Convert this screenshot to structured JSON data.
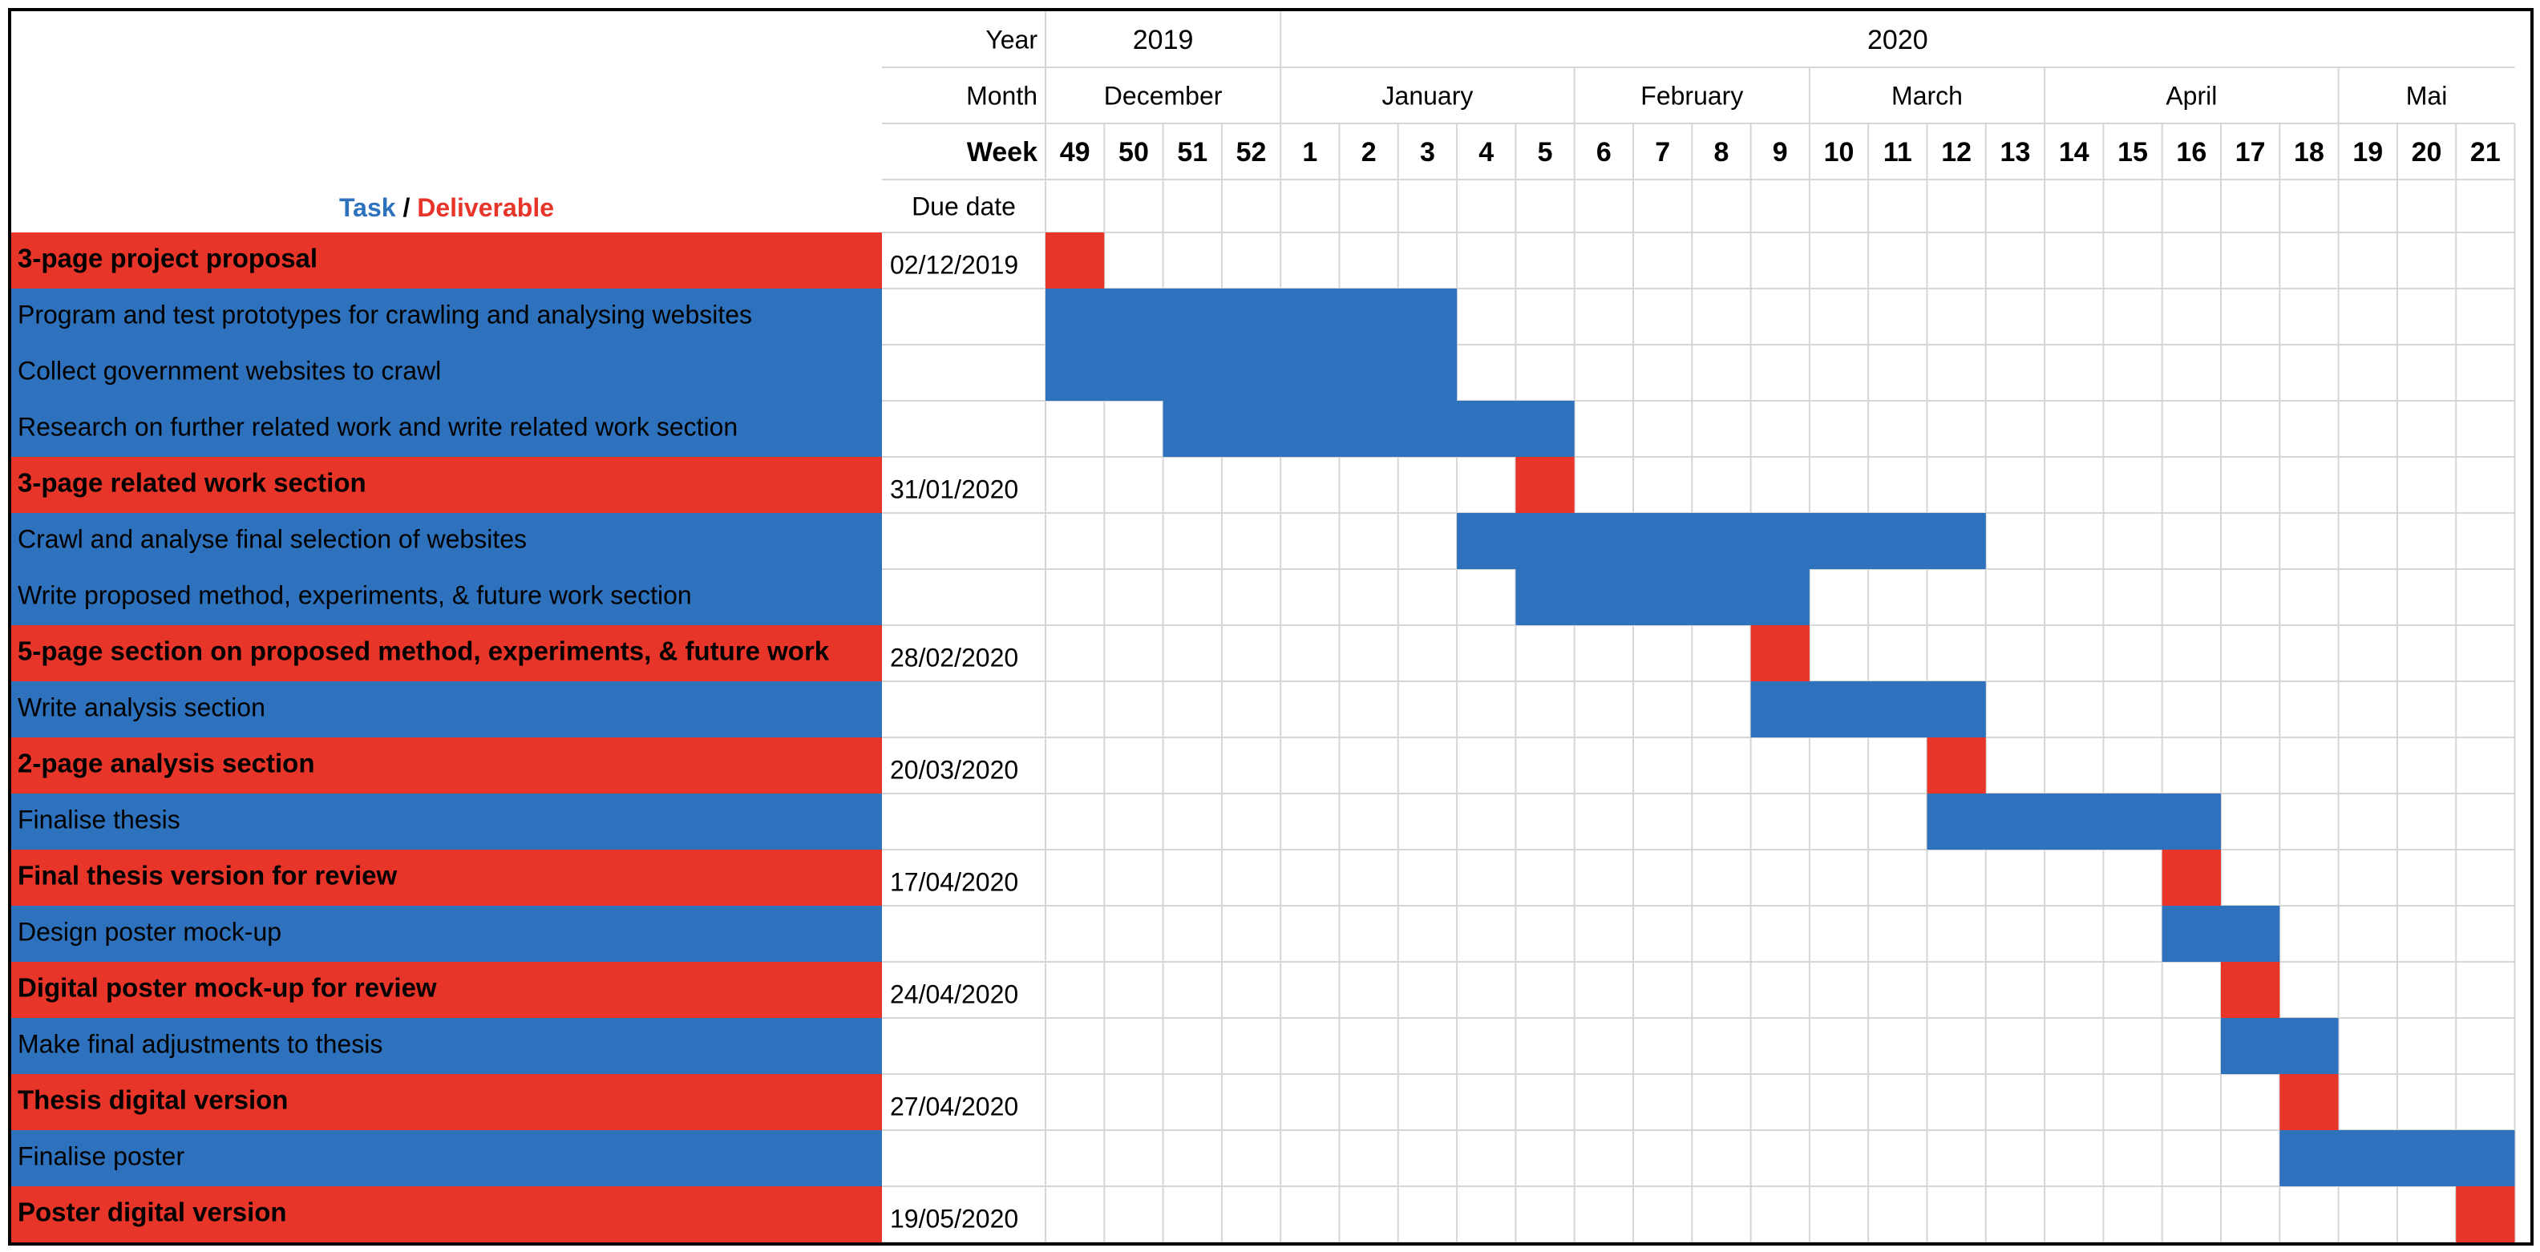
{
  "chart_data": {
    "type": "gantt",
    "legend": {
      "task_label": "Task",
      "separator": "/",
      "deliverable_label": "Deliverable"
    },
    "header_labels": {
      "year": "Year",
      "month": "Month",
      "week": "Week",
      "due_date": "Due date"
    },
    "years": [
      {
        "label": "2019",
        "start_week_index": 0,
        "span": 4
      },
      {
        "label": "2020",
        "start_week_index": 4,
        "span": 21
      }
    ],
    "months": [
      {
        "label": "December",
        "start_week_index": 0,
        "span": 4
      },
      {
        "label": "January",
        "start_week_index": 4,
        "span": 5
      },
      {
        "label": "February",
        "start_week_index": 9,
        "span": 4
      },
      {
        "label": "March",
        "start_week_index": 13,
        "span": 4
      },
      {
        "label": "April",
        "start_week_index": 17,
        "span": 5
      },
      {
        "label": "Mai",
        "start_week_index": 22,
        "span": 3
      }
    ],
    "weeks": [
      "49",
      "50",
      "51",
      "52",
      "1",
      "2",
      "3",
      "4",
      "5",
      "6",
      "7",
      "8",
      "9",
      "10",
      "11",
      "12",
      "13",
      "14",
      "15",
      "16",
      "17",
      "18",
      "19",
      "20",
      "21"
    ],
    "rows": [
      {
        "label": "3-page project proposal",
        "kind": "deliverable",
        "due": "02/12/2019",
        "start_week_index": 0,
        "end_week_index": 1
      },
      {
        "label": "Program and test prototypes for crawling and analysing websites",
        "kind": "task",
        "due": "",
        "start_week_index": 0,
        "end_week_index": 7
      },
      {
        "label": "Collect government websites to crawl",
        "kind": "task",
        "due": "",
        "start_week_index": 0,
        "end_week_index": 7
      },
      {
        "label": "Research on further related work and write related work section",
        "kind": "task",
        "due": "",
        "start_week_index": 2,
        "end_week_index": 9
      },
      {
        "label": "3-page related work section",
        "kind": "deliverable",
        "due": "31/01/2020",
        "start_week_index": 8,
        "end_week_index": 9
      },
      {
        "label": "Crawl and analyse final selection of websites",
        "kind": "task",
        "due": "",
        "start_week_index": 7,
        "end_week_index": 16
      },
      {
        "label": "Write proposed method, experiments, & future work section",
        "kind": "task",
        "due": "",
        "start_week_index": 8,
        "end_week_index": 13
      },
      {
        "label": "5-page section on proposed method, experiments, & future work",
        "kind": "deliverable",
        "due": "28/02/2020",
        "start_week_index": 12,
        "end_week_index": 13
      },
      {
        "label": "Write analysis section",
        "kind": "task",
        "due": "",
        "start_week_index": 12,
        "end_week_index": 16
      },
      {
        "label": "2-page analysis section",
        "kind": "deliverable",
        "due": "20/03/2020",
        "start_week_index": 15,
        "end_week_index": 16
      },
      {
        "label": "Finalise thesis",
        "kind": "task",
        "due": "",
        "start_week_index": 15,
        "end_week_index": 20
      },
      {
        "label": "Final thesis version for review",
        "kind": "deliverable",
        "due": "17/04/2020",
        "start_week_index": 19,
        "end_week_index": 20
      },
      {
        "label": "Design poster mock-up",
        "kind": "task",
        "due": "",
        "start_week_index": 19,
        "end_week_index": 21
      },
      {
        "label": "Digital poster mock-up for review",
        "kind": "deliverable",
        "due": "24/04/2020",
        "start_week_index": 20,
        "end_week_index": 21
      },
      {
        "label": "Make final adjustments to thesis",
        "kind": "task",
        "due": "",
        "start_week_index": 20,
        "end_week_index": 22
      },
      {
        "label": "Thesis digital version",
        "kind": "deliverable",
        "due": "27/04/2020",
        "start_week_index": 21,
        "end_week_index": 22
      },
      {
        "label": "Finalise poster",
        "kind": "task",
        "due": "",
        "start_week_index": 21,
        "end_week_index": 25
      },
      {
        "label": "Poster digital version",
        "kind": "deliverable",
        "due": "19/05/2020",
        "start_week_index": 24,
        "end_week_index": 25
      }
    ]
  },
  "colors": {
    "task": "#2e72bd",
    "deliverable": "#e8352a",
    "grid": "#d6d6d6",
    "text": "#000000"
  }
}
